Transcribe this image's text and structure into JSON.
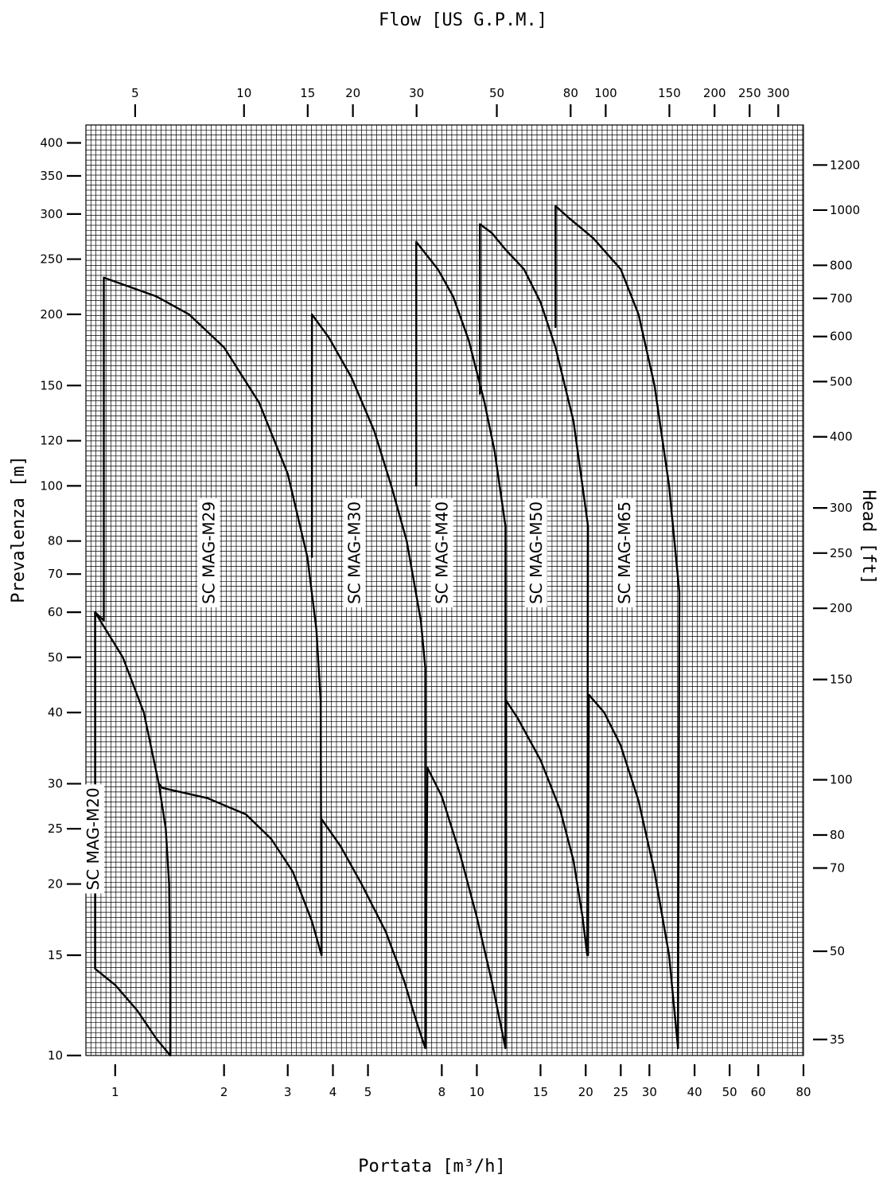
{
  "chart_data": {
    "type": "line",
    "title": "",
    "xlabel": "Portata [m³/h]",
    "x2label": "Flow [US G.P.M.]",
    "ylabel": "Prevalenza [m]",
    "y2label": "Head [ft]",
    "x_scale": "log",
    "y_scale": "log",
    "xlim": [
      0.83,
      80
    ],
    "ylim": [
      10,
      430
    ],
    "grid": true,
    "legend": "none",
    "x_ticks": [
      1,
      2,
      3,
      4,
      5,
      8,
      10,
      15,
      20,
      25,
      30,
      40,
      50,
      60,
      80
    ],
    "x2_ticks": [
      5,
      10,
      15,
      20,
      30,
      50,
      80,
      100,
      150,
      200,
      250,
      300
    ],
    "y_ticks": [
      10,
      15,
      20,
      25,
      30,
      40,
      50,
      60,
      70,
      80,
      100,
      120,
      150,
      200,
      250,
      300,
      350,
      400
    ],
    "y2_ticks": [
      35,
      50,
      70,
      80,
      100,
      150,
      200,
      250,
      300,
      400,
      500,
      600,
      700,
      800,
      1000,
      1200
    ],
    "series": [
      {
        "name": "SC MAG-M20",
        "label_pos": {
          "x": 0.9,
          "y": 19.5
        },
        "outline": [
          [
            0.88,
            14.2
          ],
          [
            1.0,
            13.3
          ],
          [
            1.15,
            12.0
          ],
          [
            1.3,
            10.7
          ],
          [
            1.42,
            10.0
          ],
          [
            1.42,
            14.0
          ],
          [
            1.41,
            20.0
          ],
          [
            1.38,
            25.0
          ],
          [
            1.32,
            30.0
          ],
          [
            1.2,
            40.0
          ],
          [
            1.05,
            50.0
          ],
          [
            0.88,
            60.0
          ],
          [
            0.88,
            14.2
          ]
        ]
      },
      {
        "name": "SC MAG-M29",
        "label_pos": {
          "x": 1.88,
          "y": 62
        },
        "outline": [
          [
            0.88,
            60.0
          ],
          [
            0.93,
            58.0
          ],
          [
            0.93,
            232.0
          ],
          [
            1.3,
            215.0
          ],
          [
            1.6,
            200.0
          ],
          [
            2.0,
            175.0
          ],
          [
            2.5,
            140.0
          ],
          [
            3.0,
            105.0
          ],
          [
            3.4,
            75.0
          ],
          [
            3.6,
            56.0
          ],
          [
            3.7,
            42.0
          ],
          [
            3.72,
            15.0
          ],
          [
            3.5,
            17.2
          ],
          [
            3.1,
            21.0
          ],
          [
            2.7,
            24.0
          ],
          [
            2.3,
            26.5
          ],
          [
            1.8,
            28.3
          ],
          [
            1.35,
            29.5
          ],
          [
            1.32,
            30.0
          ]
        ]
      },
      {
        "name": "SC MAG-M30",
        "label_pos": {
          "x": 4.75,
          "y": 62
        },
        "outline": [
          [
            3.72,
            15.0
          ],
          [
            3.72,
            26.0
          ],
          [
            4.2,
            23.3
          ],
          [
            4.8,
            20.0
          ],
          [
            5.6,
            16.5
          ],
          [
            6.3,
            13.5
          ],
          [
            6.8,
            11.5
          ],
          [
            7.2,
            10.3
          ],
          [
            7.2,
            48.0
          ],
          [
            7.0,
            58.0
          ],
          [
            6.4,
            80.0
          ],
          [
            5.8,
            100.0
          ],
          [
            5.2,
            125.0
          ],
          [
            4.5,
            155.0
          ],
          [
            3.9,
            182.0
          ],
          [
            3.5,
            200.0
          ],
          [
            3.5,
            75.0
          ]
        ]
      },
      {
        "name": "SC MAG-M40",
        "label_pos": {
          "x": 8.3,
          "y": 62
        },
        "outline": [
          [
            7.2,
            10.3
          ],
          [
            7.3,
            32.0
          ],
          [
            8.0,
            28.5
          ],
          [
            9.0,
            22.5
          ],
          [
            10.0,
            17.5
          ],
          [
            11.0,
            13.5
          ],
          [
            12.0,
            10.3
          ],
          [
            12.0,
            85.0
          ],
          [
            11.2,
            115.0
          ],
          [
            10.5,
            140.0
          ],
          [
            9.5,
            180.0
          ],
          [
            8.6,
            215.0
          ],
          [
            7.8,
            240.0
          ],
          [
            6.8,
            268.0
          ],
          [
            6.8,
            100.0
          ]
        ]
      },
      {
        "name": "SC MAG-M50",
        "label_pos": {
          "x": 15.1,
          "y": 62
        },
        "outline": [
          [
            12.0,
            10.3
          ],
          [
            12.05,
            42.0
          ],
          [
            13.0,
            39.0
          ],
          [
            15.0,
            33.0
          ],
          [
            17.0,
            27.0
          ],
          [
            18.5,
            22.0
          ],
          [
            19.6,
            17.5
          ],
          [
            20.2,
            15.0
          ],
          [
            20.3,
            85.0
          ],
          [
            18.5,
            130.0
          ],
          [
            16.5,
            175.0
          ],
          [
            15.0,
            210.0
          ],
          [
            13.5,
            240.0
          ],
          [
            12.0,
            260.0
          ],
          [
            11.0,
            278.0
          ],
          [
            10.2,
            288.0
          ],
          [
            10.2,
            145.0
          ]
        ]
      },
      {
        "name": "SC MAG-M65",
        "label_pos": {
          "x": 26.5,
          "y": 62
        },
        "outline": [
          [
            20.3,
            15.0
          ],
          [
            20.4,
            43.0
          ],
          [
            22.5,
            40.0
          ],
          [
            25.0,
            35.0
          ],
          [
            28.0,
            28.0
          ],
          [
            31.0,
            21.0
          ],
          [
            34.0,
            15.0
          ],
          [
            36.0,
            10.3
          ],
          [
            36.3,
            65.0
          ],
          [
            34.0,
            100.0
          ],
          [
            31.0,
            150.0
          ],
          [
            28.0,
            200.0
          ],
          [
            25.0,
            240.0
          ],
          [
            21.0,
            272.0
          ],
          [
            18.0,
            295.0
          ],
          [
            16.5,
            310.0
          ],
          [
            16.5,
            190.0
          ]
        ]
      }
    ]
  }
}
